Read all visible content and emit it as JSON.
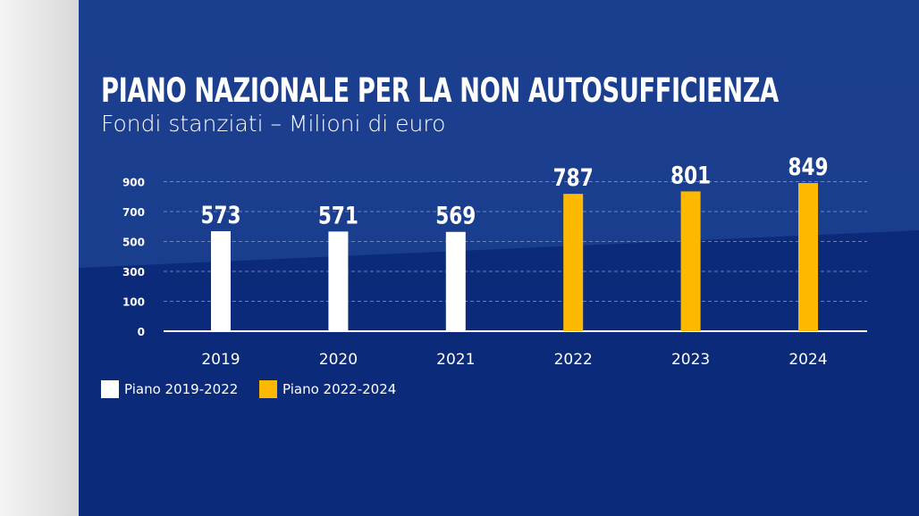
{
  "chart_data": {
    "type": "bar",
    "title": "PIANO NAZIONALE PER LA NON AUTOSUFFICIENZA",
    "subtitle": "Fondi stanziati – Milioni di euro",
    "categories": [
      "2019",
      "2020",
      "2021",
      "2022",
      "2023",
      "2024"
    ],
    "values": [
      573,
      571,
      569,
      787,
      801,
      849
    ],
    "bar_series": [
      "Piano 2019-2022",
      "Piano 2019-2022",
      "Piano 2019-2022",
      "Piano 2022-2024",
      "Piano 2022-2024",
      "Piano 2022-2024"
    ],
    "y_tick_labels": [
      "0",
      "100",
      "300",
      "500",
      "700",
      "900"
    ],
    "grid": true,
    "legend": [
      {
        "name": "Piano 2019-2022",
        "color": "#ffffff"
      },
      {
        "name": "Piano 2022-2024",
        "color": "#fcb900"
      }
    ],
    "legend_placement": "bottom-left"
  }
}
